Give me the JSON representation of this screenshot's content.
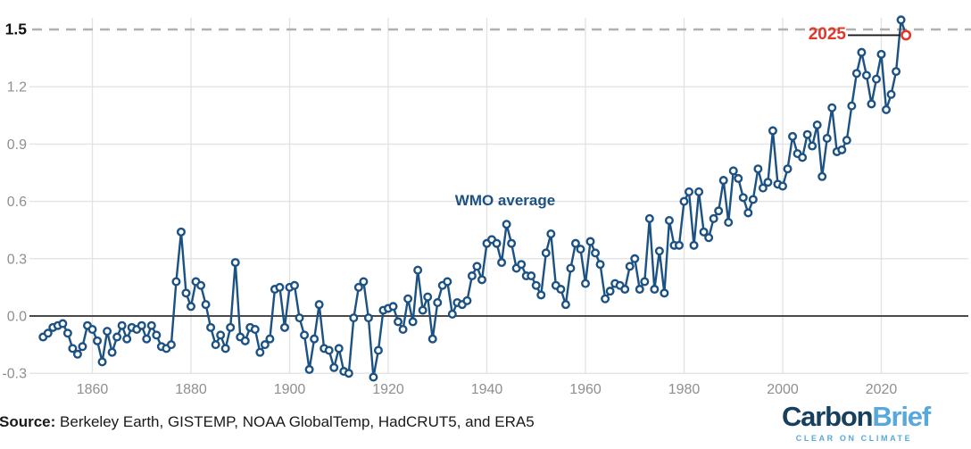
{
  "chart_data": {
    "type": "line",
    "title": "",
    "xlabel": "",
    "ylabel": "",
    "annotation_series_label": "WMO average",
    "annotation_estimate_label": "2025",
    "legend_position": "none",
    "grid": true,
    "xlim": [
      1848,
      2028
    ],
    "ylim": [
      -0.38,
      1.62
    ],
    "x_ticks": [
      1860,
      1880,
      1900,
      1920,
      1940,
      1960,
      1980,
      2000,
      2020
    ],
    "y_ticks": [
      {
        "label": "-0.3",
        "value": -0.3
      },
      {
        "label": "0.0",
        "value": 0.0
      },
      {
        "label": "0.3",
        "value": 0.3
      },
      {
        "label": "0.6",
        "value": 0.6
      },
      {
        "label": "0.9",
        "value": 0.9
      },
      {
        "label": "1.2",
        "value": 1.2
      },
      {
        "label": "1.5",
        "value": 1.5
      }
    ],
    "highlighted_y_tick": "1.5",
    "dashed_reference_value": 1.5,
    "zero_line_value": 0.0,
    "series": [
      {
        "name": "WMO average",
        "start_year": 1850,
        "values": [
          -0.11,
          -0.09,
          -0.06,
          -0.05,
          -0.04,
          -0.09,
          -0.17,
          -0.2,
          -0.16,
          -0.05,
          -0.07,
          -0.13,
          -0.24,
          -0.08,
          -0.19,
          -0.11,
          -0.05,
          -0.12,
          -0.06,
          -0.07,
          -0.05,
          -0.12,
          -0.05,
          -0.1,
          -0.16,
          -0.17,
          -0.15,
          0.18,
          0.44,
          0.12,
          0.05,
          0.18,
          0.16,
          0.06,
          -0.06,
          -0.15,
          -0.1,
          -0.17,
          -0.06,
          0.28,
          -0.11,
          -0.13,
          -0.06,
          -0.07,
          -0.19,
          -0.15,
          -0.12,
          0.14,
          0.15,
          -0.06,
          0.15,
          0.16,
          -0.01,
          -0.1,
          -0.28,
          -0.12,
          0.06,
          -0.17,
          -0.18,
          -0.27,
          -0.17,
          -0.29,
          -0.3,
          -0.01,
          0.15,
          0.18,
          -0.01,
          -0.32,
          -0.18,
          0.03,
          0.04,
          0.05,
          -0.03,
          -0.07,
          0.09,
          -0.03,
          0.24,
          0.03,
          0.1,
          -0.12,
          0.07,
          0.16,
          0.18,
          0.01,
          0.07,
          0.06,
          0.08,
          0.21,
          0.26,
          0.19,
          0.38,
          0.4,
          0.38,
          0.28,
          0.48,
          0.38,
          0.25,
          0.27,
          0.21,
          0.21,
          0.16,
          0.11,
          0.33,
          0.43,
          0.16,
          0.14,
          0.06,
          0.25,
          0.38,
          0.35,
          0.17,
          0.39,
          0.33,
          0.27,
          0.09,
          0.13,
          0.17,
          0.16,
          0.14,
          0.26,
          0.3,
          0.14,
          0.18,
          0.51,
          0.14,
          0.34,
          0.12,
          0.5,
          0.37,
          0.37,
          0.6,
          0.65,
          0.37,
          0.65,
          0.44,
          0.41,
          0.51,
          0.55,
          0.71,
          0.49,
          0.76,
          0.72,
          0.62,
          0.54,
          0.61,
          0.77,
          0.67,
          0.7,
          0.97,
          0.69,
          0.68,
          0.77,
          0.94,
          0.85,
          0.83,
          0.95,
          0.89,
          1.0,
          0.73,
          0.93,
          1.09,
          0.86,
          0.87,
          0.92,
          1.1,
          1.27,
          1.38,
          1.26,
          1.11,
          1.24,
          1.37,
          1.08,
          1.16,
          1.28,
          1.55
        ]
      }
    ],
    "estimate_point": {
      "year": 2025,
      "value": 1.47,
      "label": "2025"
    }
  },
  "labels": {
    "wmo_average": "WMO average",
    "estimate_year": "2025"
  },
  "source": {
    "label": "Source:",
    "text": " Berkeley Earth, GISTEMP, NOAA GlobalTemp, HadCRUT5, and ERA5"
  },
  "logo": {
    "part1": "Carbon",
    "part2": "Brief",
    "tagline": "CLEAR ON CLIMATE"
  },
  "colors": {
    "line": "#1b5183",
    "marker_fill": "#ffffff",
    "estimate": "#e0382c",
    "grid": "#e3e3e3",
    "zero_line": "#4a4a4a",
    "dashed_line": "#b0b0b0",
    "tick_text": "#8f8f8f",
    "highlight_tick_text": "#111111",
    "leader_line": "#1a1a1a",
    "logo_dark": "#16405e",
    "logo_light": "#57a9db"
  }
}
